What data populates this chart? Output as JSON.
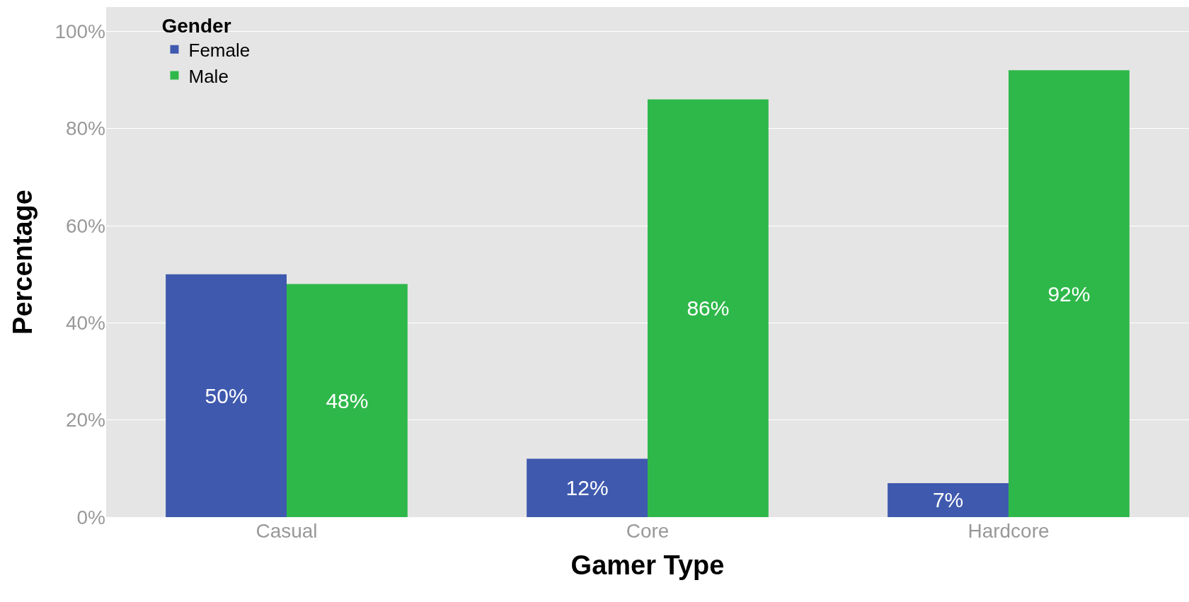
{
  "chart_data": {
    "type": "bar",
    "xlabel": "Gamer Type",
    "ylabel": "Percentage",
    "legend_title": "Gender",
    "categories": [
      "Casual",
      "Core",
      "Hardcore"
    ],
    "series": [
      {
        "name": "Female",
        "color": "#3f59ae",
        "values": [
          50,
          12,
          7
        ],
        "value_labels": [
          "50%",
          "12%",
          "7%"
        ]
      },
      {
        "name": "Male",
        "color": "#2fb84a",
        "values": [
          48,
          86,
          92
        ],
        "value_labels": [
          "48%",
          "86%",
          "92%"
        ]
      }
    ],
    "ylim": [
      0,
      105
    ],
    "yticks": [
      {
        "value": 0,
        "label": "0%"
      },
      {
        "value": 20,
        "label": "20%"
      },
      {
        "value": 40,
        "label": "40%"
      },
      {
        "value": 60,
        "label": "60%"
      },
      {
        "value": 80,
        "label": "80%"
      },
      {
        "value": 100,
        "label": "100%"
      }
    ],
    "grid": "y",
    "legend": "top left"
  }
}
